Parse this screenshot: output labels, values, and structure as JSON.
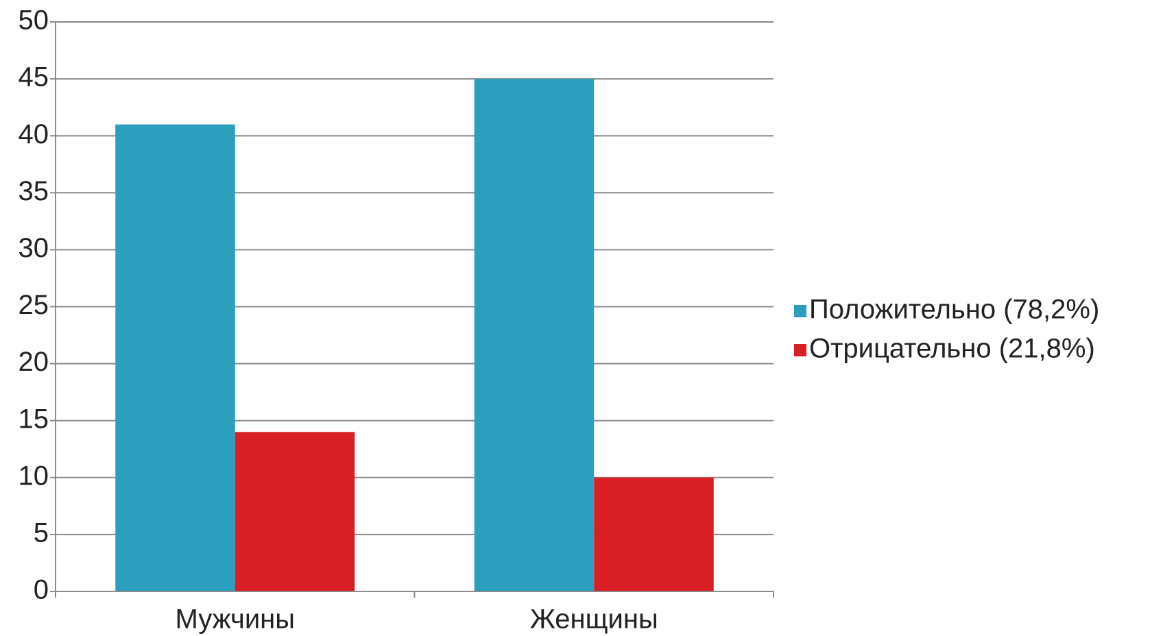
{
  "chart_data": {
    "type": "bar",
    "categories": [
      "Мужчины",
      "Женщины"
    ],
    "series": [
      {
        "name": "Положительно (78,2%)",
        "color": "#2b9fbd",
        "values": [
          41,
          45
        ]
      },
      {
        "name": "Отрицательно (21,8%)",
        "color": "#d81f26",
        "values": [
          14,
          10
        ]
      }
    ],
    "ylim": [
      0,
      50
    ],
    "yticks": [
      0,
      5,
      10,
      15,
      20,
      25,
      30,
      35,
      40,
      45,
      50
    ],
    "grid": true,
    "legend": "right"
  }
}
